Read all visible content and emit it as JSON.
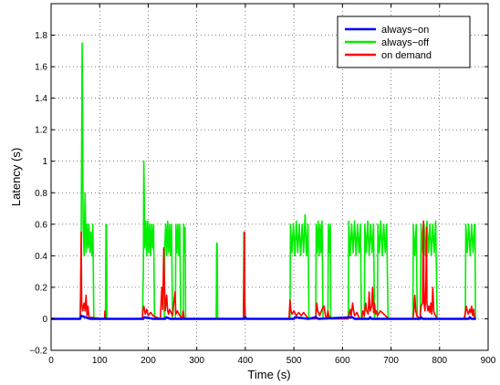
{
  "chart_data": {
    "type": "line",
    "title": "",
    "xlabel": "Time (s)",
    "ylabel": "Latency (s)",
    "xlim": [
      0,
      900
    ],
    "ylim": [
      -0.2,
      2.0
    ],
    "xticks": [
      0,
      100,
      200,
      300,
      400,
      500,
      600,
      700,
      800,
      900
    ],
    "yticks": [
      -0.2,
      0,
      0.2,
      0.4,
      0.6,
      0.8,
      1,
      1.2,
      1.4,
      1.6,
      1.8
    ],
    "ytick_labels": [
      "−0.2",
      "0",
      "0.2",
      "0.4",
      "0.6",
      "0.8",
      "1",
      "1.2",
      "1.4",
      "1.6",
      "1.8"
    ],
    "grid": true,
    "legend_position": "top-right",
    "series": [
      {
        "name": "always−on",
        "color": "#0000ff",
        "points": [
          [
            0,
            0
          ],
          [
            60,
            0
          ],
          [
            62,
            0.02
          ],
          [
            70,
            0.01
          ],
          [
            80,
            0
          ],
          [
            190,
            0
          ],
          [
            192,
            0.01
          ],
          [
            210,
            0
          ],
          [
            235,
            0
          ],
          [
            237,
            0.01
          ],
          [
            245,
            0
          ],
          [
            398,
            0
          ],
          [
            400,
            0.01
          ],
          [
            402,
            0
          ],
          [
            500,
            0
          ],
          [
            502,
            0.01
          ],
          [
            530,
            0
          ],
          [
            545,
            0.01
          ],
          [
            550,
            0
          ],
          [
            620,
            0.01
          ],
          [
            625,
            0
          ],
          [
            655,
            0
          ],
          [
            657,
            0.01
          ],
          [
            660,
            0
          ],
          [
            760,
            0
          ],
          [
            762,
            0.01
          ],
          [
            765,
            0
          ],
          [
            860,
            0
          ],
          [
            862,
            0.01
          ],
          [
            866,
            0
          ],
          [
            875,
            0
          ]
        ]
      },
      {
        "name": "always−off",
        "color": "#00ee00",
        "points": [
          [
            0,
            0
          ],
          [
            60,
            0
          ],
          [
            62,
            0.5
          ],
          [
            64,
            1.75
          ],
          [
            66,
            0.6
          ],
          [
            68,
            0.4
          ],
          [
            70,
            0.8
          ],
          [
            72,
            0.42
          ],
          [
            74,
            0.6
          ],
          [
            76,
            0.45
          ],
          [
            78,
            0.6
          ],
          [
            80,
            0.42
          ],
          [
            82,
            0.55
          ],
          [
            84,
            0.4
          ],
          [
            86,
            0.6
          ],
          [
            88,
            0
          ],
          [
            112,
            0
          ],
          [
            113,
            0.6
          ],
          [
            114,
            0.6
          ],
          [
            115,
            0
          ],
          [
            188,
            0
          ],
          [
            190,
            0.3
          ],
          [
            191,
            1.0
          ],
          [
            193,
            0.45
          ],
          [
            195,
            0.62
          ],
          [
            197,
            0.4
          ],
          [
            199,
            0.62
          ],
          [
            201,
            0.42
          ],
          [
            203,
            0.6
          ],
          [
            205,
            0.4
          ],
          [
            207,
            0.6
          ],
          [
            209,
            0.45
          ],
          [
            211,
            0.6
          ],
          [
            213,
            0
          ],
          [
            233,
            0
          ],
          [
            234,
            0.45
          ],
          [
            236,
            0.6
          ],
          [
            238,
            0.4
          ],
          [
            240,
            0.62
          ],
          [
            242,
            0.42
          ],
          [
            244,
            0.6
          ],
          [
            246,
            0.4
          ],
          [
            248,
            0.6
          ],
          [
            250,
            0
          ],
          [
            256,
            0
          ],
          [
            257,
            0.6
          ],
          [
            259,
            0.42
          ],
          [
            261,
            0.6
          ],
          [
            263,
            0.4
          ],
          [
            265,
            0.6
          ],
          [
            267,
            0
          ],
          [
            272,
            0
          ],
          [
            273,
            0.6
          ],
          [
            274,
            0.42
          ],
          [
            276,
            0.58
          ],
          [
            277,
            0
          ],
          [
            340,
            0
          ],
          [
            341,
            0.48
          ],
          [
            342,
            0.48
          ],
          [
            343,
            0
          ],
          [
            396,
            0
          ],
          [
            397,
            0.55
          ],
          [
            398,
            0.55
          ],
          [
            399,
            0
          ],
          [
            492,
            0
          ],
          [
            493,
            0.6
          ],
          [
            496,
            0.42
          ],
          [
            499,
            0.6
          ],
          [
            502,
            0.4
          ],
          [
            505,
            0.62
          ],
          [
            508,
            0.42
          ],
          [
            511,
            0.6
          ],
          [
            514,
            0.4
          ],
          [
            517,
            0.6
          ],
          [
            520,
            0.42
          ],
          [
            523,
            0.66
          ],
          [
            526,
            0.4
          ],
          [
            529,
            0.6
          ],
          [
            531,
            0
          ],
          [
            545,
            0
          ],
          [
            546,
            0.6
          ],
          [
            548,
            0.42
          ],
          [
            550,
            0.62
          ],
          [
            552,
            0.4
          ],
          [
            554,
            0.6
          ],
          [
            556,
            0.42
          ],
          [
            558,
            0.62
          ],
          [
            560,
            0
          ],
          [
            570,
            0
          ],
          [
            571,
            0.6
          ],
          [
            573,
            0.42
          ],
          [
            575,
            0.6
          ],
          [
            576,
            0
          ],
          [
            612,
            0
          ],
          [
            613,
            0.62
          ],
          [
            616,
            0.4
          ],
          [
            619,
            0.6
          ],
          [
            622,
            0.42
          ],
          [
            625,
            0.62
          ],
          [
            628,
            0.4
          ],
          [
            631,
            0.6
          ],
          [
            634,
            0.42
          ],
          [
            637,
            0.6
          ],
          [
            639,
            0
          ],
          [
            645,
            0
          ],
          [
            646,
            0.6
          ],
          [
            649,
            0.42
          ],
          [
            652,
            0.62
          ],
          [
            655,
            0.4
          ],
          [
            658,
            0.6
          ],
          [
            661,
            0.42
          ],
          [
            664,
            0.6
          ],
          [
            666,
            0
          ],
          [
            672,
            0
          ],
          [
            673,
            0.6
          ],
          [
            676,
            0.42
          ],
          [
            679,
            0.62
          ],
          [
            682,
            0.4
          ],
          [
            685,
            0.6
          ],
          [
            688,
            0.42
          ],
          [
            691,
            0.6
          ],
          [
            694,
            0
          ],
          [
            745,
            0
          ],
          [
            746,
            0.6
          ],
          [
            749,
            0.4
          ],
          [
            752,
            0.6
          ],
          [
            754,
            0
          ],
          [
            760,
            0
          ],
          [
            762,
            0.6
          ],
          [
            765,
            0.42
          ],
          [
            768,
            0.6
          ],
          [
            771,
            0.4
          ],
          [
            774,
            0.62
          ],
          [
            777,
            0.42
          ],
          [
            780,
            0.6
          ],
          [
            783,
            0.4
          ],
          [
            786,
            0.6
          ],
          [
            789,
            0.42
          ],
          [
            792,
            0.62
          ],
          [
            795,
            0
          ],
          [
            853,
            0
          ],
          [
            854,
            0.6
          ],
          [
            857,
            0.42
          ],
          [
            860,
            0.6
          ],
          [
            863,
            0.4
          ],
          [
            866,
            0.6
          ],
          [
            869,
            0.42
          ],
          [
            872,
            0.6
          ],
          [
            873,
            0.6
          ],
          [
            874,
            0
          ]
        ]
      },
      {
        "name": "on demand",
        "color": "#ff0000",
        "points": [
          [
            0,
            0
          ],
          [
            60,
            0
          ],
          [
            61,
            0.2
          ],
          [
            62,
            0.55
          ],
          [
            63,
            0.1
          ],
          [
            65,
            0.05
          ],
          [
            68,
            0.1
          ],
          [
            70,
            0.05
          ],
          [
            72,
            0.15
          ],
          [
            74,
            0.02
          ],
          [
            76,
            0.08
          ],
          [
            78,
            0.01
          ],
          [
            110,
            0
          ],
          [
            111,
            0.05
          ],
          [
            112,
            0
          ],
          [
            188,
            0
          ],
          [
            189,
            0.05
          ],
          [
            191,
            0.08
          ],
          [
            194,
            0.03
          ],
          [
            197,
            0.06
          ],
          [
            200,
            0.02
          ],
          [
            205,
            0.04
          ],
          [
            210,
            0.02
          ],
          [
            225,
            0
          ],
          [
            228,
            0.2
          ],
          [
            230,
            0.06
          ],
          [
            232,
            0.45
          ],
          [
            233,
            0.28
          ],
          [
            235,
            0.05
          ],
          [
            238,
            0.15
          ],
          [
            240,
            0.05
          ],
          [
            242,
            0.03
          ],
          [
            244,
            0.06
          ],
          [
            250,
            0.02
          ],
          [
            255,
            0.17
          ],
          [
            257,
            0.03
          ],
          [
            260,
            0.05
          ],
          [
            265,
            0.02
          ],
          [
            270,
            0
          ],
          [
            272,
            0.05
          ],
          [
            274,
            0
          ],
          [
            396,
            0
          ],
          [
            397,
            0.2
          ],
          [
            398,
            0.55
          ],
          [
            399,
            0.1
          ],
          [
            400,
            0
          ],
          [
            490,
            0
          ],
          [
            492,
            0.12
          ],
          [
            494,
            0.05
          ],
          [
            496,
            0.03
          ],
          [
            500,
            0.05
          ],
          [
            505,
            0.02
          ],
          [
            510,
            0.04
          ],
          [
            515,
            0.02
          ],
          [
            520,
            0.04
          ],
          [
            525,
            0.02
          ],
          [
            530,
            0
          ],
          [
            545,
            0
          ],
          [
            547,
            0.1
          ],
          [
            549,
            0.05
          ],
          [
            551,
            0.04
          ],
          [
            553,
            0.02
          ],
          [
            558,
            0.06
          ],
          [
            562,
            0.08
          ],
          [
            565,
            0.02
          ],
          [
            568,
            0
          ],
          [
            570,
            0.05
          ],
          [
            572,
            0.02
          ],
          [
            575,
            0
          ],
          [
            612,
            0
          ],
          [
            614,
            0.03
          ],
          [
            616,
            0.06
          ],
          [
            618,
            0.02
          ],
          [
            621,
            0.1
          ],
          [
            623,
            0.05
          ],
          [
            625,
            0.02
          ],
          [
            630,
            0.04
          ],
          [
            635,
            0
          ],
          [
            640,
            0
          ],
          [
            642,
            0.05
          ],
          [
            645,
            0.02
          ],
          [
            648,
            0.1
          ],
          [
            650,
            0.05
          ],
          [
            653,
            0.03
          ],
          [
            655,
            0.17
          ],
          [
            657,
            0.05
          ],
          [
            660,
            0.08
          ],
          [
            662,
            0.2
          ],
          [
            664,
            0.04
          ],
          [
            666,
            0.1
          ],
          [
            668,
            0.03
          ],
          [
            670,
            0.05
          ],
          [
            672,
            0.02
          ],
          [
            678,
            0.05
          ],
          [
            685,
            0.03
          ],
          [
            695,
            0
          ],
          [
            745,
            0
          ],
          [
            747,
            0.05
          ],
          [
            749,
            0.15
          ],
          [
            751,
            0.05
          ],
          [
            753,
            0.02
          ],
          [
            760,
            0
          ],
          [
            762,
            0.08
          ],
          [
            765,
            0.1
          ],
          [
            766,
            0.55
          ],
          [
            767,
            0.62
          ],
          [
            768,
            0.1
          ],
          [
            770,
            0.05
          ],
          [
            772,
            0.25
          ],
          [
            773,
            0.58
          ],
          [
            774,
            0.1
          ],
          [
            776,
            0.05
          ],
          [
            778,
            0.08
          ],
          [
            780,
            0.04
          ],
          [
            782,
            0.1
          ],
          [
            784,
            0.03
          ],
          [
            786,
            0.2
          ],
          [
            788,
            0.05
          ],
          [
            790,
            0.03
          ],
          [
            795,
            0
          ],
          [
            850,
            0
          ],
          [
            852,
            0.02
          ],
          [
            855,
            0.08
          ],
          [
            857,
            0.05
          ],
          [
            859,
            0.03
          ],
          [
            862,
            0.06
          ],
          [
            864,
            0.04
          ],
          [
            866,
            0.08
          ],
          [
            868,
            0.02
          ],
          [
            870,
            0.06
          ],
          [
            872,
            0
          ]
        ]
      }
    ]
  }
}
